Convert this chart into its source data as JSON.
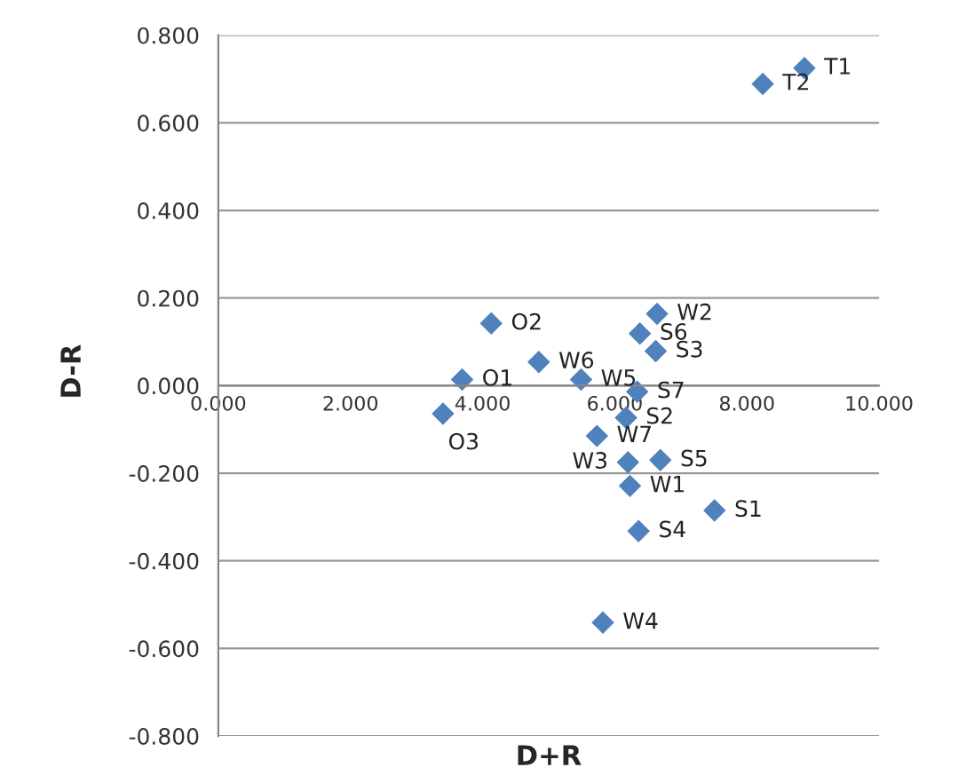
{
  "chart_data": {
    "type": "scatter",
    "xlabel": "D+R",
    "ylabel": "D-R",
    "x": [
      8.87,
      8.24,
      6.64,
      4.13,
      6.38,
      6.62,
      4.85,
      5.49,
      3.69,
      6.34,
      6.17,
      3.4,
      5.73,
      6.2,
      6.69,
      6.23,
      7.51,
      6.36,
      5.82
    ],
    "series": [
      {
        "color": "#4f81bd",
        "values": [
          0.725,
          0.689,
          0.164,
          0.142,
          0.119,
          0.079,
          0.054,
          0.014,
          0.014,
          -0.014,
          -0.073,
          -0.064,
          -0.115,
          -0.175,
          -0.17,
          -0.229,
          -0.285,
          -0.332,
          -0.541
        ]
      }
    ],
    "annotations": [
      {
        "text": "T1",
        "x": 8.87,
        "y": 0.725
      },
      {
        "text": "T2",
        "x": 8.24,
        "y": 0.689
      },
      {
        "text": "W2",
        "x": 6.64,
        "y": 0.164
      },
      {
        "text": "O2",
        "x": 4.13,
        "y": 0.142
      },
      {
        "text": "S6",
        "x": 6.38,
        "y": 0.119
      },
      {
        "text": "S3",
        "x": 6.62,
        "y": 0.079
      },
      {
        "text": "W6",
        "x": 4.85,
        "y": 0.054
      },
      {
        "text": "W5",
        "x": 5.49,
        "y": 0.014
      },
      {
        "text": "O1",
        "x": 3.69,
        "y": 0.014
      },
      {
        "text": "S7",
        "x": 6.34,
        "y": -0.014
      },
      {
        "text": "S2",
        "x": 6.17,
        "y": -0.073
      },
      {
        "text": "O3",
        "x": 3.4,
        "y": -0.064
      },
      {
        "text": "W7",
        "x": 5.73,
        "y": -0.115
      },
      {
        "text": "W3",
        "x": 6.2,
        "y": -0.175
      },
      {
        "text": "S5",
        "x": 6.69,
        "y": -0.17
      },
      {
        "text": "W1",
        "x": 6.23,
        "y": -0.229
      },
      {
        "text": "S1",
        "x": 7.51,
        "y": -0.285
      },
      {
        "text": "S4",
        "x": 6.36,
        "y": -0.332
      },
      {
        "text": "W4",
        "x": 5.82,
        "y": -0.541
      }
    ],
    "xlim": [
      0,
      10
    ],
    "ylim": [
      -0.8,
      0.8
    ],
    "xticks": [
      {
        "value": 0,
        "label": "0.000"
      },
      {
        "value": 2,
        "label": "2.000"
      },
      {
        "value": 4,
        "label": "4.000"
      },
      {
        "value": 6,
        "label": "6.000"
      },
      {
        "value": 8,
        "label": "8.000"
      },
      {
        "value": 10,
        "label": "10.000"
      }
    ],
    "yticks": [
      {
        "value": -0.8,
        "label": "-0.800"
      },
      {
        "value": -0.6,
        "label": "-0.600"
      },
      {
        "value": -0.4,
        "label": "-0.400"
      },
      {
        "value": -0.2,
        "label": "-0.200"
      },
      {
        "value": 0,
        "label": "0.000"
      },
      {
        "value": 0.2,
        "label": "0.200"
      },
      {
        "value": 0.4,
        "label": "0.400"
      },
      {
        "value": 0.6,
        "label": "0.600"
      },
      {
        "value": 0.8,
        "label": "0.800"
      }
    ],
    "grid": "y",
    "marker": "diamond"
  }
}
